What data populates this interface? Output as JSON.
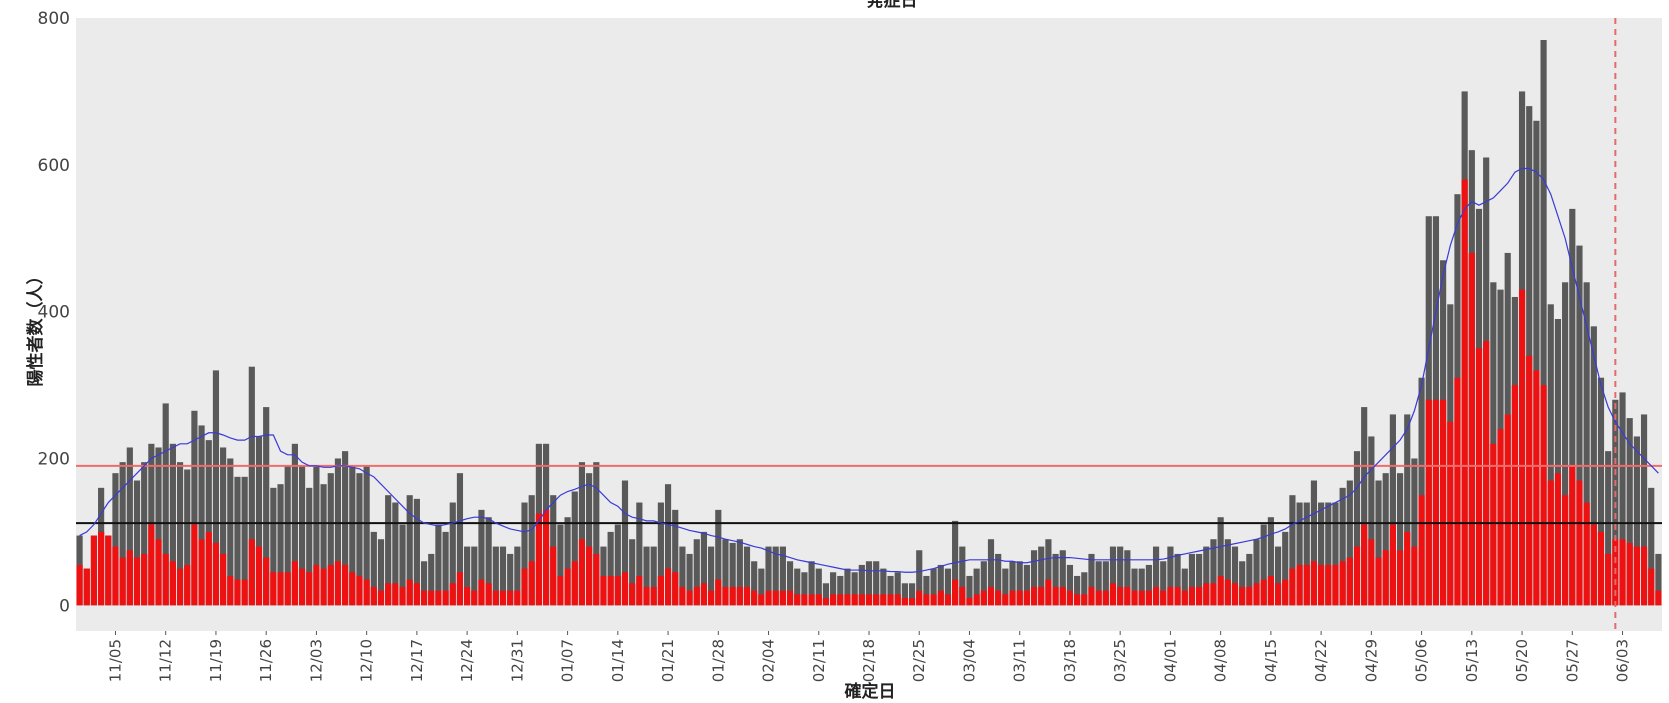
{
  "chart_data": {
    "type": "bar",
    "title": "発症日",
    "xlabel": "確定日",
    "ylabel": "陽性者数（人）",
    "ylim": [
      -35,
      800
    ],
    "yticks": [
      0,
      200,
      400,
      600,
      800
    ],
    "grid": false,
    "x_tick_labels": [
      "11/05",
      "11/12",
      "11/19",
      "11/26",
      "12/03",
      "12/10",
      "12/17",
      "12/24",
      "12/31",
      "01/07",
      "01/14",
      "01/21",
      "01/28",
      "02/04",
      "02/11",
      "02/18",
      "02/25",
      "03/04",
      "03/11",
      "03/18",
      "03/25",
      "04/01",
      "04/08",
      "04/15",
      "04/22",
      "04/29",
      "05/06",
      "05/13",
      "05/20",
      "05/27",
      "06/03"
    ],
    "x_tick_day_index": [
      5,
      12,
      19,
      26,
      33,
      40,
      47,
      54,
      61,
      68,
      75,
      82,
      89,
      96,
      103,
      110,
      117,
      124,
      131,
      138,
      145,
      152,
      159,
      166,
      173,
      180,
      187,
      194,
      201,
      208,
      215
    ],
    "first_date": "10/31",
    "series": [
      {
        "values": [
          95,
          50,
          95,
          160,
          95,
          180,
          195,
          215,
          170,
          195,
          220,
          215,
          275,
          220,
          195,
          185,
          265,
          245,
          225,
          320,
          215,
          200,
          175,
          175,
          325,
          230,
          270,
          160,
          165,
          190,
          220,
          190,
          160,
          190,
          165,
          180,
          200,
          210,
          190,
          180,
          190,
          100,
          90,
          150,
          140,
          110,
          150,
          145,
          60,
          70,
          110,
          100,
          140,
          180,
          80,
          80,
          130,
          120,
          80,
          80,
          70,
          80,
          140,
          150,
          220,
          220,
          150,
          110,
          120,
          155,
          195,
          180,
          195,
          80,
          100,
          110,
          170,
          90,
          140,
          80,
          80,
          140,
          165,
          130,
          80,
          70,
          90,
          100,
          80,
          130,
          90,
          85,
          90,
          80,
          60,
          50,
          80,
          80,
          80,
          60,
          50,
          45,
          60,
          50,
          30,
          45,
          40,
          50,
          45,
          55,
          60,
          60,
          50,
          40,
          45,
          30,
          30,
          75,
          40,
          50,
          55,
          50,
          115,
          80,
          40,
          50,
          60,
          90,
          70,
          50,
          60,
          60,
          55,
          75,
          80,
          90,
          70,
          75,
          55,
          40,
          45,
          70,
          60,
          60,
          80,
          80,
          75,
          50,
          50,
          55,
          80,
          60,
          80,
          70,
          50,
          70,
          70,
          80,
          90,
          120,
          90,
          80,
          60,
          70,
          90,
          110,
          120,
          80,
          100,
          150,
          140,
          140,
          170,
          140,
          140,
          140,
          160,
          170,
          210,
          270,
          230,
          170,
          180,
          260,
          180,
          260,
          200,
          310,
          530,
          530,
          470,
          410,
          560,
          700,
          620,
          540,
          610,
          440,
          430,
          480,
          420,
          700,
          680,
          660,
          770,
          410,
          390,
          440,
          540,
          490,
          440,
          380,
          310,
          210,
          280,
          290,
          255,
          230,
          260,
          160,
          70
        ]
      },
      {
        "values": [
          55,
          50,
          95,
          100,
          95,
          80,
          65,
          75,
          65,
          70,
          110,
          90,
          70,
          60,
          50,
          55,
          110,
          90,
          100,
          85,
          70,
          40,
          35,
          35,
          90,
          80,
          65,
          45,
          45,
          45,
          60,
          50,
          45,
          55,
          50,
          55,
          60,
          55,
          45,
          40,
          35,
          25,
          20,
          30,
          30,
          25,
          35,
          30,
          20,
          20,
          20,
          20,
          30,
          45,
          25,
          20,
          35,
          30,
          20,
          20,
          20,
          20,
          50,
          60,
          125,
          130,
          80,
          40,
          50,
          60,
          90,
          80,
          70,
          40,
          40,
          40,
          45,
          30,
          40,
          25,
          25,
          40,
          50,
          45,
          25,
          20,
          25,
          30,
          20,
          35,
          25,
          25,
          25,
          25,
          20,
          15,
          20,
          20,
          20,
          20,
          15,
          15,
          15,
          15,
          10,
          15,
          15,
          15,
          15,
          15,
          15,
          15,
          15,
          15,
          15,
          10,
          10,
          20,
          15,
          15,
          20,
          15,
          35,
          25,
          10,
          15,
          20,
          25,
          20,
          15,
          20,
          20,
          20,
          25,
          25,
          35,
          25,
          25,
          20,
          15,
          15,
          25,
          20,
          20,
          30,
          25,
          25,
          20,
          20,
          20,
          25,
          20,
          25,
          25,
          20,
          25,
          25,
          30,
          30,
          40,
          35,
          30,
          25,
          25,
          30,
          35,
          40,
          30,
          35,
          50,
          55,
          55,
          60,
          55,
          55,
          55,
          60,
          65,
          80,
          110,
          90,
          65,
          75,
          110,
          75,
          100,
          80,
          150,
          280,
          280,
          280,
          250,
          310,
          580,
          480,
          350,
          360,
          220,
          240,
          260,
          300,
          430,
          340,
          320,
          300,
          170,
          180,
          150,
          190,
          170,
          140,
          110,
          100,
          70,
          90,
          90,
          85,
          80,
          80,
          50,
          20
        ]
      }
    ],
    "moving_average": [
      95,
      100,
      110,
      125,
      140,
      150,
      160,
      170,
      180,
      190,
      200,
      205,
      210,
      215,
      220,
      220,
      225,
      230,
      235,
      235,
      232,
      228,
      225,
      225,
      230,
      230,
      232,
      232,
      210,
      205,
      205,
      195,
      190,
      190,
      188,
      188,
      190,
      190,
      188,
      186,
      180,
      175,
      165,
      155,
      145,
      135,
      125,
      118,
      112,
      110,
      108,
      110,
      112,
      115,
      118,
      120,
      120,
      118,
      112,
      108,
      104,
      102,
      100,
      103,
      115,
      130,
      140,
      150,
      155,
      158,
      162,
      165,
      160,
      150,
      140,
      135,
      125,
      120,
      118,
      115,
      115,
      112,
      110,
      108,
      105,
      102,
      100,
      98,
      95,
      93,
      90,
      88,
      86,
      83,
      80,
      78,
      74,
      70,
      68,
      65,
      62,
      60,
      58,
      56,
      54,
      52,
      50,
      48,
      48,
      48,
      47,
      47,
      47,
      46,
      46,
      45,
      45,
      46,
      48,
      50,
      53,
      56,
      58,
      60,
      62,
      62,
      62,
      62,
      62,
      60,
      60,
      58,
      58,
      60,
      62,
      64,
      65,
      65,
      65,
      64,
      63,
      62,
      62,
      62,
      62,
      62,
      62,
      62,
      62,
      62,
      62,
      63,
      65,
      68,
      70,
      72,
      74,
      76,
      78,
      80,
      82,
      84,
      86,
      88,
      90,
      93,
      97,
      100,
      104,
      110,
      115,
      120,
      125,
      130,
      135,
      140,
      145,
      150,
      160,
      175,
      185,
      195,
      205,
      215,
      225,
      240,
      265,
      300,
      350,
      400,
      450,
      490,
      520,
      540,
      550,
      545,
      550,
      555,
      565,
      575,
      590,
      595,
      595,
      590,
      580,
      560,
      530,
      500,
      460,
      420,
      380,
      340,
      300,
      270,
      250,
      235,
      220,
      210,
      200,
      190,
      180
    ],
    "hlines": [
      {
        "value": 190,
        "color": "#f26b6b"
      },
      {
        "value": 112,
        "color": "#111111"
      }
    ],
    "vline_day_index": 214,
    "colors": {
      "total": "#595959",
      "subset": "#ee1111",
      "moving_average": "#3a3ad8",
      "panel": "#ebebeb",
      "vline": "#e46b6b"
    }
  }
}
